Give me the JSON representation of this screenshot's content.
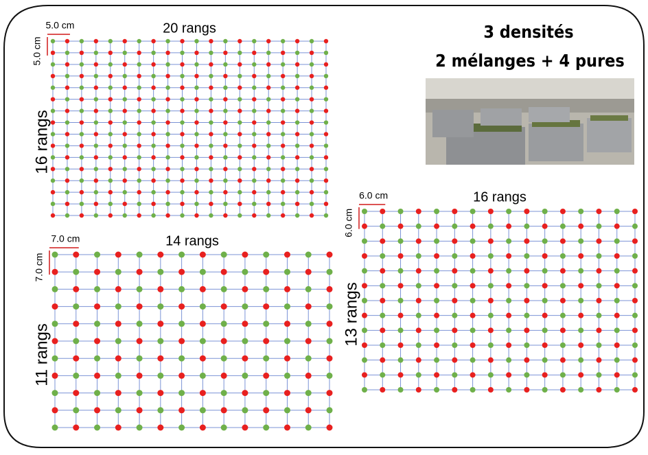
{
  "title": {
    "line1": "3 densités",
    "line2": "2 mélanges + 4 pures"
  },
  "grids": [
    {
      "spacing_h": "5.0 cm",
      "spacing_v": "5.0 cm",
      "columns": "20 rangs",
      "rows": "16 rangs"
    },
    {
      "spacing_h": "7.0 cm",
      "spacing_v": "7.0 cm",
      "columns": "14 rangs",
      "rows": "11 rangs"
    },
    {
      "spacing_h": "6.0 cm",
      "spacing_v": "6.0 cm",
      "columns": "16 rangs",
      "rows": "13 rangs"
    }
  ]
}
